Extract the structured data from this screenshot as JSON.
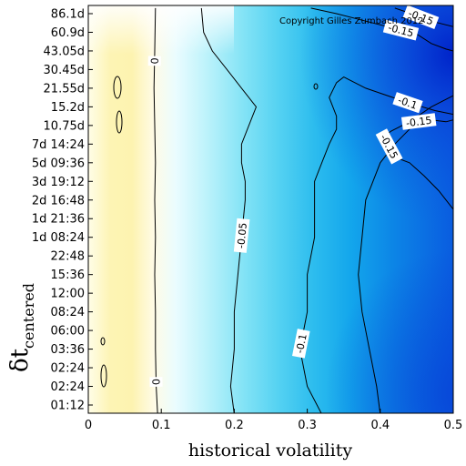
{
  "chart_data": {
    "type": "heatmap",
    "xlabel": "historical volatility",
    "ylabel": "δt",
    "ylabel_subscript": "centered",
    "x_ticks": [
      "0",
      "0.1",
      "0.2",
      "0.3",
      "0.4",
      "0.5"
    ],
    "xlim": [
      0,
      0.5
    ],
    "y_ticks": [
      "01:12",
      "02:24",
      "02:24",
      "03:36",
      "06:00",
      "08:24",
      "12:00",
      "15:36",
      "22:48",
      "1d 08:24",
      "1d 21:36",
      "2d 16:48",
      "3d 19:12",
      "5d 09:36",
      "7d 14:24",
      "10.75d",
      "15.2d",
      "21.55d",
      "30.45d",
      "43.05d",
      "60.9d",
      "86.1d"
    ],
    "contours": [
      {
        "level": 0,
        "label": "0",
        "x": [
          0.095,
          0.093,
          0.092,
          0.092,
          0.091,
          0.092,
          0.091,
          0.092,
          0.091,
          0.09,
          0.091,
          0.092
        ],
        "y_index": [
          -0.5,
          1,
          3,
          5,
          7,
          9,
          11,
          13,
          15,
          17,
          19,
          21.3
        ]
      },
      {
        "level": -0.05,
        "label": "-0.05",
        "x": [
          0.2,
          0.195,
          0.2,
          0.2,
          0.205,
          0.21,
          0.215,
          0.215,
          0.21,
          0.21,
          0.22,
          0.23,
          0.21,
          0.19,
          0.17,
          0.158,
          0.155
        ],
        "y_index": [
          -0.5,
          1,
          3,
          5,
          7,
          9,
          11,
          12,
          13,
          14,
          15,
          16,
          17,
          18,
          19,
          20,
          21.3
        ]
      },
      {
        "level": -0.1,
        "label": "-0.1",
        "x": [
          0.32,
          0.3,
          0.29,
          0.3,
          0.3,
          0.31,
          0.31,
          0.31,
          0.32,
          0.33,
          0.34,
          0.34,
          0.33,
          0.34,
          0.35,
          0.36,
          0.38,
          0.41,
          0.44,
          0.475,
          0.5
        ],
        "y_index": [
          -0.5,
          1,
          3,
          5,
          7,
          9,
          11,
          12,
          13,
          14,
          14.8,
          15.5,
          16.5,
          17.3,
          17.6,
          17.4,
          17.0,
          16.6,
          16.2,
          15.8,
          15.6
        ]
      },
      {
        "level": -0.15,
        "label": "-0.15",
        "x": [
          0.4,
          0.395,
          0.385,
          0.375,
          0.37,
          0.375,
          0.38,
          0.39,
          0.4,
          0.42,
          0.45,
          0.47,
          0.49,
          0.5
        ],
        "y_index": [
          -0.5,
          1,
          3,
          5,
          7,
          9,
          11,
          12,
          13,
          14,
          15.2,
          15.3,
          15.2,
          15.3
        ]
      },
      {
        "level": -0.15,
        "label": "-0.15",
        "x": [
          0.5,
          0.48,
          0.46,
          0.44,
          0.42,
          0.405,
          0.415,
          0.44,
          0.47,
          0.5
        ],
        "y_index": [
          10.5,
          11.5,
          12.3,
          13.0,
          13.3,
          14.4,
          14.7,
          15.2,
          16.0,
          16.6
        ]
      },
      {
        "level": -0.15,
        "label": "-0.15",
        "x": [
          0.305,
          0.34,
          0.38,
          0.42,
          0.45,
          0.47,
          0.49,
          0.5
        ],
        "y_index": [
          21.3,
          21.0,
          20.6,
          20.2,
          19.9,
          19.4,
          19.1,
          19.0
        ]
      },
      {
        "level": -0.15,
        "label": "-0.15",
        "x": [
          0.42,
          0.45,
          0.47,
          0.49,
          0.5
        ],
        "y_index": [
          21.3,
          20.9,
          20.6,
          20.4,
          20.3
        ]
      }
    ],
    "value_scale": {
      "min": -0.2,
      "max": 0.02
    }
  },
  "copyright": "Copyright Gilles Zumbach 2012"
}
